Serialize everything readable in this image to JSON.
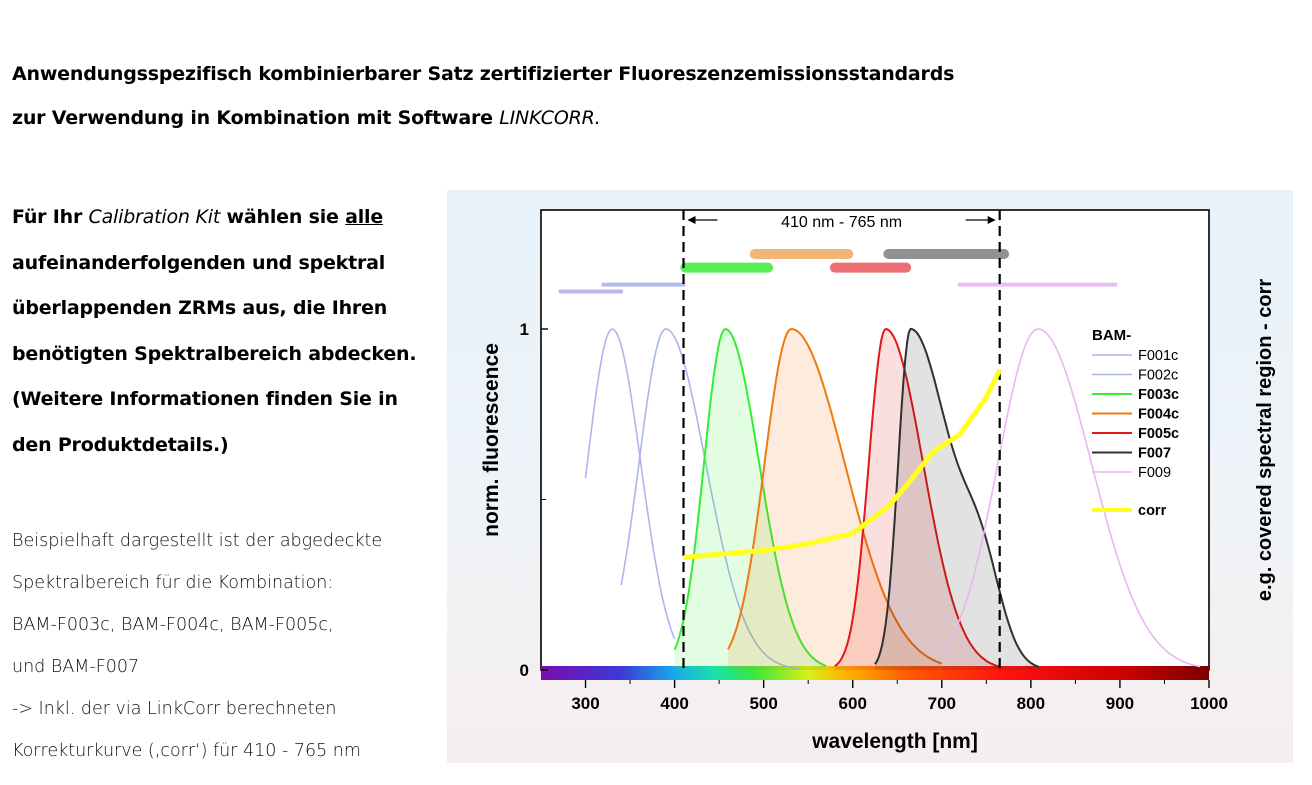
{
  "header": {
    "line1": "Anwendungsspezifisch kombinierbarer Satz zertifizierter Fluoreszenzemissionsstandards",
    "line2_prefix": "zur Verwendung in Kombination mit Software ",
    "line2_italic": "LINKCORR."
  },
  "lead": {
    "l1_a": "Für Ihr ",
    "l1_italic": "Calibration Kit",
    "l1_b": " wählen sie ",
    "l1_underline": "alle",
    "l2": "aufeinanderfolgenden und spektral",
    "l3": "überlappenden ZRMs aus, die Ihren",
    "l4": "benötigten Spektralbereich abdecken.",
    "l5": "(Weitere Informationen finden Sie in",
    "l6": "den Produktdetails.)"
  },
  "note": {
    "l1": "Beispielhaft dargestellt ist der abgedeckte",
    "l2": "Spektralbereich für die Kombination:",
    "l3": "BAM-F003c, BAM-F004c, BAM-F005c,",
    "l4": "und BAM-F007",
    "l5": "-> Inkl. der via LinkCorr berechneten",
    "l6": "Korrekturkurve (‚corr‘) für 410 - 765 nm"
  },
  "chart_data": {
    "type": "line",
    "xlabel": "wavelength [nm]",
    "ylabel": "norm. fluorescence",
    "right_label": "e.g. covered spectral region - corr",
    "xlim": [
      250,
      1000
    ],
    "ylim": [
      0,
      1.3
    ],
    "xticks": [
      "300",
      "400",
      "500",
      "600",
      "700",
      "800",
      "900",
      "1000"
    ],
    "yticks": [
      "0",
      "1"
    ],
    "legend_title": "BAM-",
    "legend_position": "right",
    "covered_range": {
      "from": 410,
      "to": 765,
      "label": "410 nm - 765 nm"
    },
    "series": [
      {
        "name": "F001c",
        "color": "#b9aef0",
        "peak": 330,
        "wl": 28,
        "wr": 32,
        "x0": 300,
        "x1": 400,
        "bold": false,
        "filled": false,
        "bar": [
          272,
          340
        ],
        "bar_y": 1.11
      },
      {
        "name": "F002c",
        "color": "#a8b6ec",
        "peak": 390,
        "wl": 30,
        "wr": 45,
        "x0": 340,
        "x1": 540,
        "bold": false,
        "filled": false,
        "bar": [
          320,
          410
        ],
        "bar_y": 1.13
      },
      {
        "name": "F003c",
        "color": "#33ee33",
        "peak": 457,
        "wl": 24,
        "wr": 38,
        "x0": 400,
        "x1": 570,
        "bold": true,
        "filled": true,
        "bar": [
          412,
          505
        ],
        "bar_y": 1.18
      },
      {
        "name": "F004c",
        "color": "#f07a10",
        "peak": 531,
        "wl": 30,
        "wr": 60,
        "x0": 460,
        "x1": 700,
        "bold": true,
        "filled": true,
        "bar": [
          490,
          595
        ],
        "bar_y": 1.22
      },
      {
        "name": "F005c",
        "color": "#e01818",
        "peak": 637,
        "wl": 19,
        "wr": 42,
        "x0": 580,
        "x1": 770,
        "bold": true,
        "filled": true,
        "bar": [
          580,
          660
        ],
        "bar_y": 1.18
      },
      {
        "name": "F007",
        "color": "#303030",
        "peak": 665,
        "wl": 14,
        "wr": 45,
        "x0": 625,
        "x1": 810,
        "bold": true,
        "filled": true,
        "shoulder": [
          745,
          0.22,
          22
        ],
        "bar": [
          640,
          770
        ],
        "bar_y": 1.22
      },
      {
        "name": "F009",
        "color": "#eab6ef",
        "peak": 808,
        "wl": 45,
        "wr": 60,
        "x0": 700,
        "x1": 990,
        "bold": false,
        "filled": false,
        "bar": [
          720,
          895
        ],
        "bar_y": 1.13
      }
    ],
    "corr": {
      "name": "corr",
      "color": "#ffff22",
      "x": [
        410,
        450,
        500,
        550,
        600,
        640,
        660,
        690,
        720,
        750,
        765
      ],
      "y": [
        0.33,
        0.34,
        0.35,
        0.37,
        0.4,
        0.48,
        0.54,
        0.64,
        0.69,
        0.8,
        0.88
      ]
    },
    "bar_colors": {
      "F001c": "#c2b2ee",
      "F002c": "#b0bcec",
      "F003c": "#55ee55",
      "F004c": "#f2b477",
      "F005c": "#ee6f73",
      "F007": "#8e9294",
      "F009": "#e6bff0"
    }
  }
}
